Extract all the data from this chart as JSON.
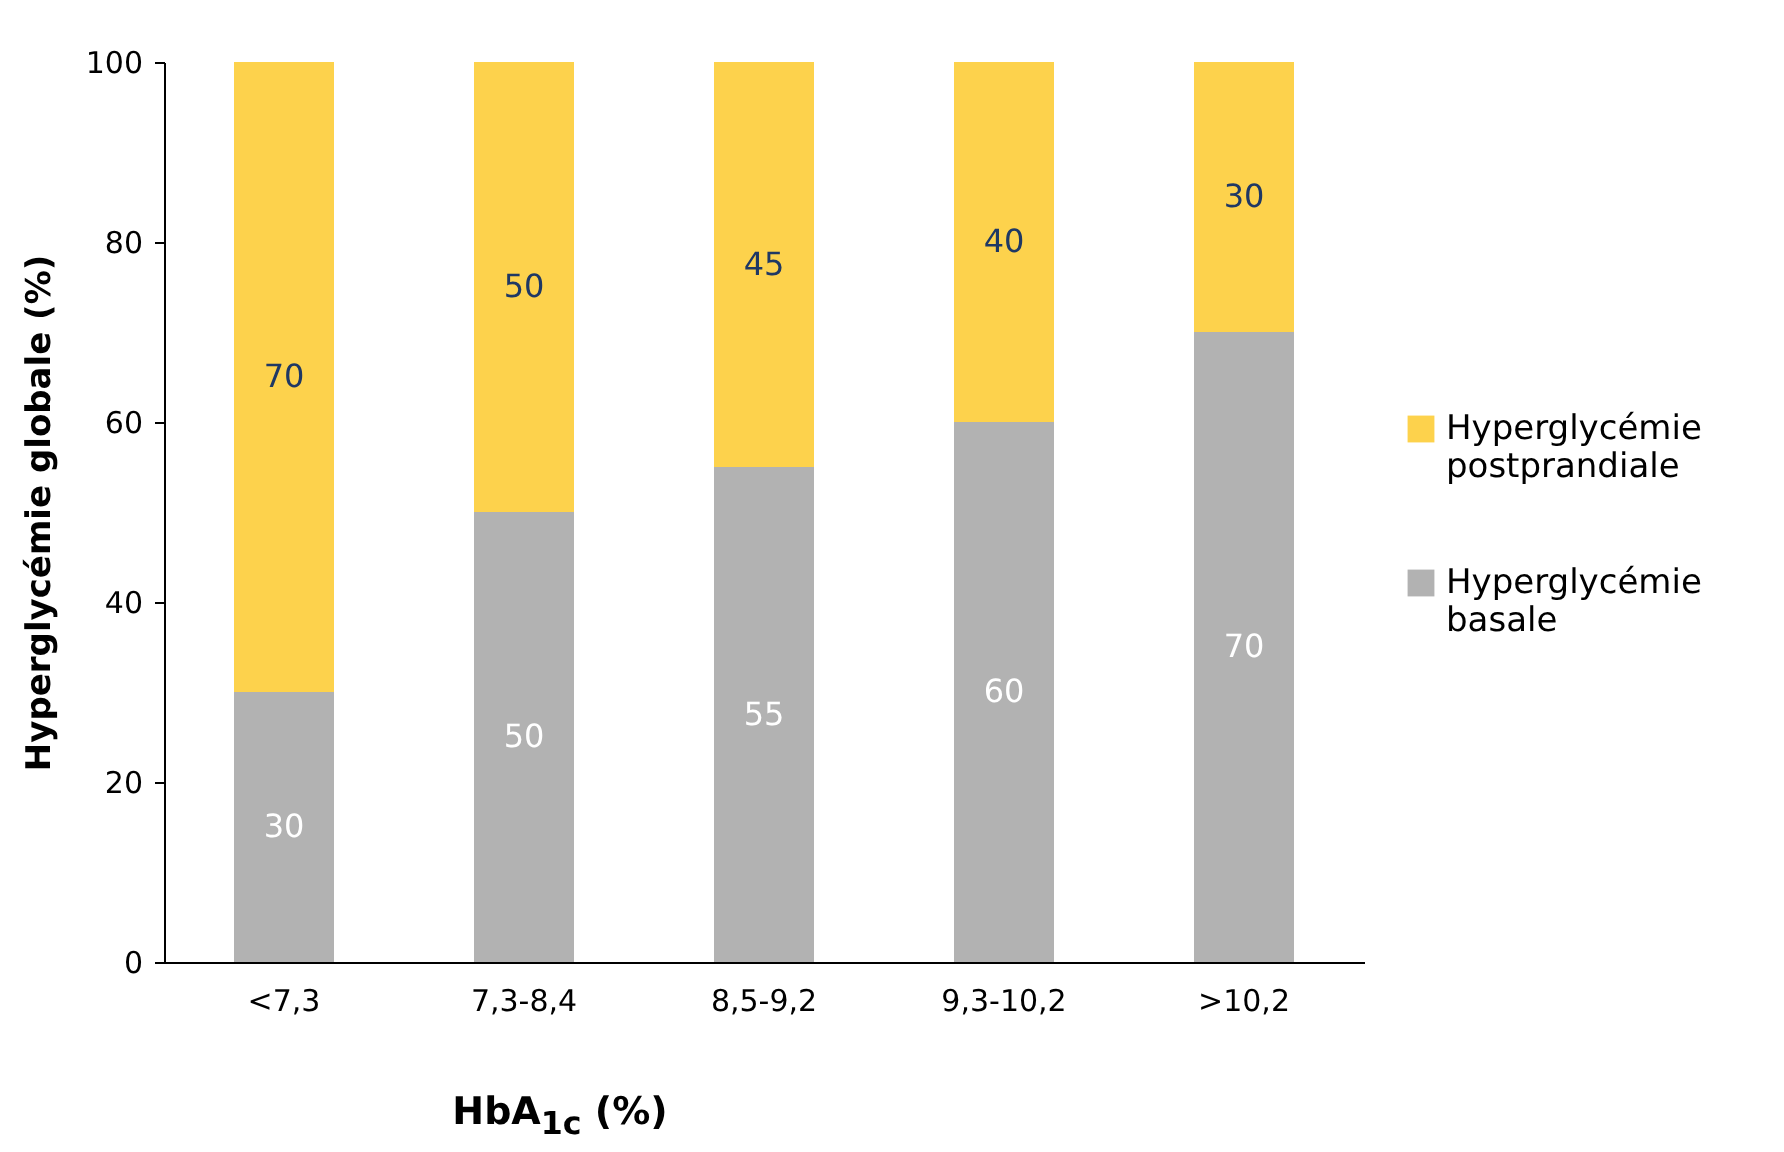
{
  "chart_data": {
    "type": "bar",
    "stacked": true,
    "xlabel": "HbA$_{1c}$ (%)",
    "ylabel": "Hyperglycémie globale (%)",
    "categories": [
      "<7,3",
      "7,3-8,4",
      "8,5-9,2",
      "9,3-10,2",
      ">10,2"
    ],
    "series": [
      {
        "name": "Hyperglycémie basale",
        "color": "#b2b2b2",
        "values": [
          30,
          50,
          55,
          60,
          70
        ]
      },
      {
        "name": "Hyperglycémie postprandiale",
        "color": "#fdd24c",
        "values": [
          70,
          50,
          45,
          40,
          30
        ]
      }
    ],
    "ylim": [
      0,
      100
    ],
    "yticks": [
      0,
      20,
      40,
      60,
      80,
      100
    ],
    "grid": false,
    "legend": "right",
    "data_labels": true
  }
}
